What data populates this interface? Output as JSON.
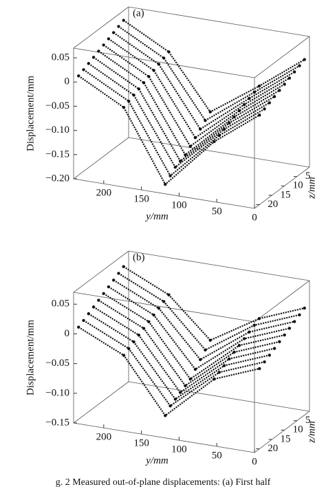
{
  "chart_data": [
    {
      "type": "scatter3d",
      "title": "(a)",
      "xlabel": "y/mm",
      "ylabel": "Displacement/mm",
      "zlabel": "z/mm",
      "xlim": [
        0,
        240
      ],
      "xticks": [
        0,
        50,
        100,
        150,
        200
      ],
      "zlim": [
        0,
        22
      ],
      "zticks": [
        5,
        10,
        15,
        20
      ],
      "ylim": [
        -0.2,
        0.07
      ],
      "yticks": [
        {
          "value": -0.2,
          "label": "−0.20"
        },
        {
          "value": -0.15,
          "label": "−0.15"
        },
        {
          "value": -0.1,
          "label": "−0.10"
        },
        {
          "value": -0.05,
          "label": "−0.05"
        },
        0,
        0.05
      ],
      "x": [
        240,
        180,
        125,
        60,
        0
      ],
      "z": [
        2,
        4,
        6,
        8,
        10,
        12,
        14,
        16,
        18,
        20
      ],
      "color": "#111111",
      "series": [
        {
          "values": [
            0.05,
            0.0,
            -0.11,
            -0.04,
            0.03
          ]
        },
        {
          "values": [
            0.045,
            -0.005,
            -0.12,
            -0.045,
            0.025
          ]
        },
        {
          "values": [
            0.04,
            -0.01,
            -0.13,
            -0.05,
            0.02
          ]
        },
        {
          "values": [
            0.035,
            -0.015,
            -0.14,
            -0.055,
            0.015
          ]
        },
        {
          "values": [
            0.03,
            -0.02,
            -0.15,
            -0.06,
            0.01
          ]
        },
        {
          "values": [
            0.025,
            -0.025,
            -0.16,
            -0.065,
            0.005
          ]
        },
        {
          "values": [
            0.02,
            -0.03,
            -0.165,
            -0.07,
            0.0
          ]
        },
        {
          "values": [
            0.015,
            -0.035,
            -0.17,
            -0.075,
            -0.005
          ]
        },
        {
          "values": [
            0.01,
            -0.04,
            -0.18,
            -0.08,
            -0.01
          ]
        },
        {
          "values": [
            0.005,
            -0.045,
            -0.19,
            -0.085,
            -0.015
          ]
        }
      ]
    },
    {
      "type": "scatter3d",
      "title": "(b)",
      "xlabel": "y/mm",
      "ylabel": "Displacement/mm",
      "zlabel": "z/mm",
      "xlim": [
        0,
        240
      ],
      "xticks": [
        0,
        50,
        100,
        150,
        200
      ],
      "zlim": [
        0,
        22
      ],
      "zticks": [
        5,
        10,
        15,
        20
      ],
      "ylim": [
        -0.15,
        0.07
      ],
      "yticks": [
        {
          "value": -0.15,
          "label": "−0.15"
        },
        {
          "value": -0.1,
          "label": "−0.10"
        },
        {
          "value": -0.05,
          "label": "−0.05"
        },
        0,
        0.05
      ],
      "x": [
        240,
        180,
        125,
        60,
        0
      ],
      "z": [
        2,
        4,
        6,
        8,
        10,
        12,
        14,
        16,
        18,
        20
      ],
      "color": "#111111",
      "series": [
        {
          "values": [
            0.05,
            0.015,
            -0.05,
            0.0,
            0.03
          ]
        },
        {
          "values": [
            0.045,
            0.01,
            -0.06,
            -0.005,
            0.025
          ]
        },
        {
          "values": [
            0.04,
            0.005,
            -0.07,
            -0.01,
            0.02
          ]
        },
        {
          "values": [
            0.035,
            0.0,
            -0.08,
            -0.015,
            0.015
          ]
        },
        {
          "values": [
            0.03,
            -0.005,
            -0.09,
            -0.02,
            0.01
          ]
        },
        {
          "values": [
            0.025,
            -0.01,
            -0.095,
            -0.025,
            0.005
          ]
        },
        {
          "values": [
            0.02,
            -0.015,
            -0.1,
            -0.03,
            0.0
          ]
        },
        {
          "values": [
            0.015,
            -0.02,
            -0.105,
            -0.035,
            -0.005
          ]
        },
        {
          "values": [
            0.01,
            -0.025,
            -0.11,
            -0.04,
            -0.01
          ]
        },
        {
          "values": [
            0.005,
            -0.03,
            -0.12,
            -0.045,
            -0.015
          ]
        }
      ]
    }
  ],
  "caption": "g. 2 Measured out-of-plane displacements: (a) First half"
}
